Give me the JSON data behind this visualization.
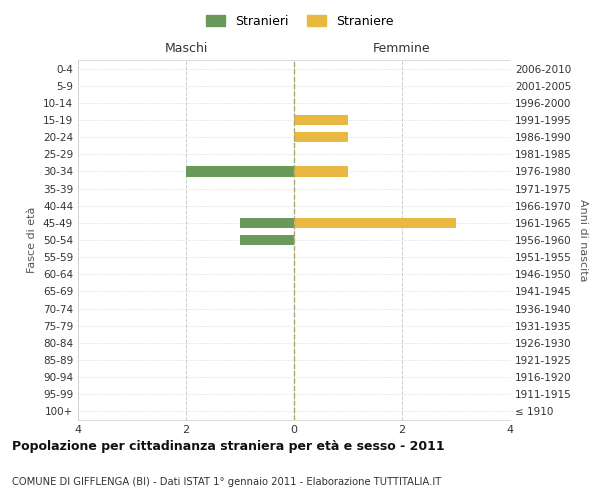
{
  "age_groups": [
    "100+",
    "95-99",
    "90-94",
    "85-89",
    "80-84",
    "75-79",
    "70-74",
    "65-69",
    "60-64",
    "55-59",
    "50-54",
    "45-49",
    "40-44",
    "35-39",
    "30-34",
    "25-29",
    "20-24",
    "15-19",
    "10-14",
    "5-9",
    "0-4"
  ],
  "birth_years": [
    "≤ 1910",
    "1911-1915",
    "1916-1920",
    "1921-1925",
    "1926-1930",
    "1931-1935",
    "1936-1940",
    "1941-1945",
    "1946-1950",
    "1951-1955",
    "1956-1960",
    "1961-1965",
    "1966-1970",
    "1971-1975",
    "1976-1980",
    "1981-1985",
    "1986-1990",
    "1991-1995",
    "1996-2000",
    "2001-2005",
    "2006-2010"
  ],
  "maschi": [
    0,
    0,
    0,
    0,
    0,
    0,
    0,
    0,
    0,
    0,
    1,
    1,
    0,
    0,
    2,
    0,
    0,
    0,
    0,
    0,
    0
  ],
  "femmine": [
    0,
    0,
    0,
    0,
    0,
    0,
    0,
    0,
    0,
    0,
    0,
    3,
    0,
    0,
    1,
    0,
    1,
    1,
    0,
    0,
    0
  ],
  "color_maschi": "#6a9a5a",
  "color_femmine": "#e8b840",
  "xlim": 4,
  "xlabel_left": "Maschi",
  "xlabel_right": "Femmine",
  "ylabel_left": "Fasce di età",
  "ylabel_right": "Anni di nascita",
  "legend_stranieri": "Stranieri",
  "legend_straniere": "Straniere",
  "title": "Popolazione per cittadinanza straniera per età e sesso - 2011",
  "subtitle": "COMUNE DI GIFFLENGA (BI) - Dati ISTAT 1° gennaio 2011 - Elaborazione TUTTITALIA.IT",
  "grid_color": "#cccccc",
  "background_color": "#ffffff",
  "bar_height": 0.6
}
